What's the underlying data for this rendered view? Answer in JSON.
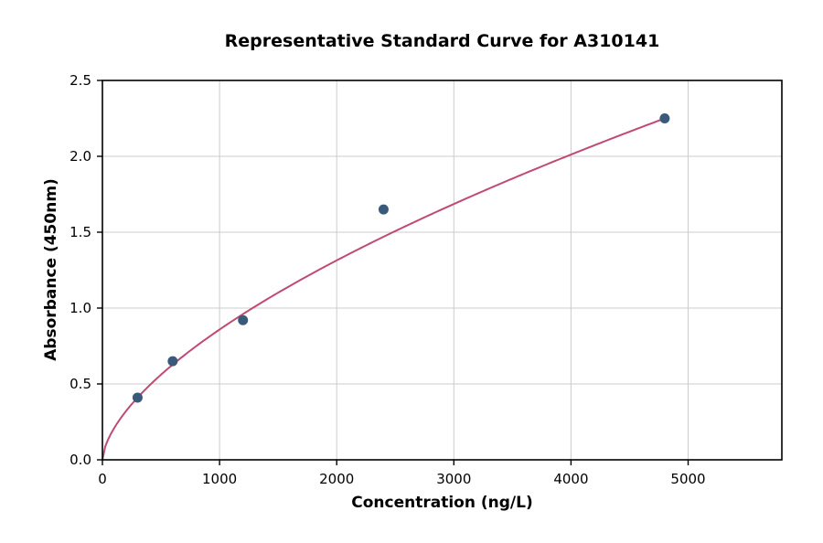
{
  "chart_data": {
    "type": "scatter",
    "title": "Representative Standard Curve for A310141",
    "xlabel": "Concentration (ng/L)",
    "ylabel": "Absorbance (450nm)",
    "xlim": [
      0,
      5800
    ],
    "ylim": [
      0,
      2.5
    ],
    "x_ticks": [
      0,
      1000,
      2000,
      3000,
      4000,
      5000
    ],
    "x_tick_labels": [
      "0",
      "1000",
      "2000",
      "3000",
      "4000",
      "5000"
    ],
    "y_ticks": [
      0,
      0.5,
      1.0,
      1.5,
      2.0,
      2.5
    ],
    "y_tick_labels": [
      "0.0",
      "0.5",
      "1.0",
      "1.5",
      "2.0",
      "2.5"
    ],
    "grid": true,
    "legend": "none",
    "points": [
      {
        "x": 300,
        "y": 0.41
      },
      {
        "x": 600,
        "y": 0.65
      },
      {
        "x": 1200,
        "y": 0.92
      },
      {
        "x": 2400,
        "y": 1.65
      },
      {
        "x": 4800,
        "y": 2.25
      }
    ],
    "fit_curve": {
      "type": "power",
      "equation": "y = a * x^b",
      "a": 0.012345,
      "b": 0.6141,
      "x_range": [
        0,
        4800
      ]
    },
    "colors": {
      "point": "#3a5a7c",
      "curve": "#c04a75",
      "grid": "#cccccc",
      "axis": "#000000",
      "background": "#ffffff"
    }
  }
}
